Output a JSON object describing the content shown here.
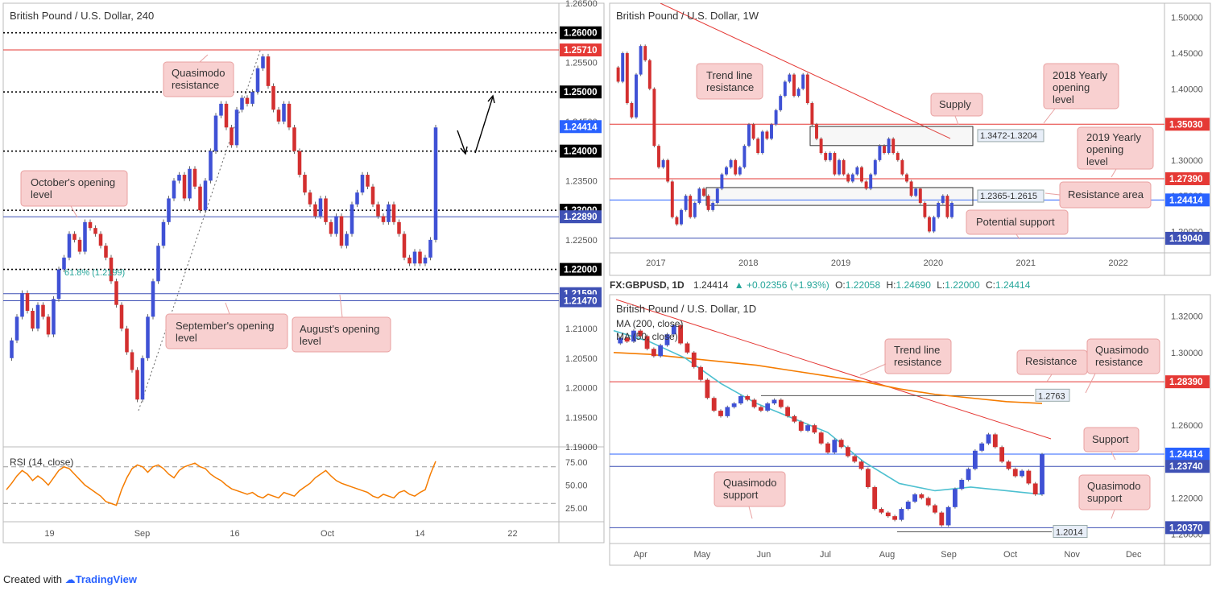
{
  "footer": {
    "created_with": "Created with",
    "brand": "TradingView"
  },
  "ohlc_bar": {
    "symbol": "FX:GBPUSD, 1D",
    "last": "1.24414",
    "change": "+0.02356 (+1.93%)",
    "o_label": "O:",
    "o": "1.22058",
    "h_label": "H:",
    "h": "1.24690",
    "l_label": "L:",
    "l": "1.22000",
    "c_label": "C:",
    "c": "1.24414"
  },
  "chart_data": [
    {
      "type": "line",
      "title": "British Pound / U.S. Dollar, 240",
      "ylim": [
        1.19,
        1.265
      ],
      "y_ticks": [
        "1.26500",
        "1.25500",
        "1.24500",
        "1.23500",
        "1.22500",
        "1.21000",
        "1.20500",
        "1.20000",
        "1.19500",
        "1.19000"
      ],
      "x_ticks": [
        "19",
        "Sep",
        "16",
        "Oct",
        "14",
        "22"
      ],
      "levels": [
        {
          "value": 1.26,
          "label": "1.26000",
          "color": "#000000",
          "style": "dotted"
        },
        {
          "value": 1.2571,
          "label": "1.25710",
          "color": "#e53935",
          "style": "solid"
        },
        {
          "value": 1.25,
          "label": "1.25000",
          "color": "#000000",
          "style": "dotted"
        },
        {
          "value": 1.24414,
          "label": "1.24414",
          "color": "#2962ff",
          "style": "none"
        },
        {
          "value": 1.24,
          "label": "1.24000",
          "color": "#000000",
          "style": "dotted"
        },
        {
          "value": 1.23,
          "label": "1.23000",
          "color": "#000000",
          "style": "dotted"
        },
        {
          "value": 1.2289,
          "label": "1.22890",
          "color": "#3f51b5",
          "style": "solid"
        },
        {
          "value": 1.22,
          "label": "1.22000",
          "color": "#000000",
          "style": "dotted"
        },
        {
          "value": 1.2159,
          "label": "1.21590",
          "color": "#3f51b5",
          "style": "solid"
        },
        {
          "value": 1.2147,
          "label": "1.21470",
          "color": "#3f51b5",
          "style": "solid"
        }
      ],
      "fib_label": "61.8% (1.2199)",
      "annotations": [
        "Quasimodo resistance",
        "October's opening level",
        "September's opening level",
        "August's opening level"
      ],
      "series": [
        {
          "values": [
            1.205,
            1.208,
            1.212,
            1.216,
            1.213,
            1.21,
            1.214,
            1.212,
            1.209,
            1.215,
            1.22,
            1.222,
            1.226,
            1.225,
            1.223,
            1.228,
            1.227,
            1.226,
            1.224,
            1.222,
            1.218,
            1.214,
            1.21,
            1.206,
            1.203,
            1.198,
            1.205,
            1.212,
            1.218,
            1.224,
            1.228,
            1.232,
            1.235,
            1.236,
            1.232,
            1.237,
            1.234,
            1.23,
            1.235,
            1.24,
            1.246,
            1.248,
            1.244,
            1.241,
            1.247,
            1.249,
            1.248,
            1.25,
            1.254,
            1.256,
            1.251,
            1.247,
            1.245,
            1.248,
            1.244,
            1.24,
            1.236,
            1.233,
            1.231,
            1.229,
            1.232,
            1.228,
            1.226,
            1.229,
            1.224,
            1.226,
            1.231,
            1.233,
            1.236,
            1.234,
            1.231,
            1.229,
            1.228,
            1.231,
            1.228,
            1.226,
            1.222,
            1.221,
            1.223,
            1.221,
            1.222,
            1.225,
            1.244
          ]
        }
      ],
      "rsi": {
        "label": "RSI (14, close)",
        "ticks": [
          "75.00",
          "50.00",
          "25.00"
        ],
        "values": [
          45,
          52,
          60,
          66,
          62,
          55,
          60,
          56,
          50,
          58,
          66,
          70,
          68,
          62,
          56,
          50,
          46,
          42,
          38,
          32,
          30,
          28,
          45,
          58,
          68,
          72,
          70,
          64,
          70,
          72,
          68,
          62,
          58,
          66,
          70,
          72,
          74,
          70,
          68,
          62,
          58,
          55,
          50,
          46,
          44,
          42,
          40,
          42,
          38,
          36,
          40,
          38,
          36,
          42,
          40,
          38,
          44,
          48,
          52,
          58,
          62,
          66,
          60,
          55,
          52,
          50,
          48,
          46,
          44,
          42,
          38,
          36,
          40,
          38,
          36,
          42,
          44,
          40,
          38,
          42,
          45,
          62,
          76
        ]
      }
    },
    {
      "type": "line",
      "title": "British Pound / U.S. Dollar, 1W",
      "ylim": [
        1.17,
        1.52
      ],
      "y_ticks": [
        "1.50000",
        "1.45000",
        "1.40000",
        "1.30000",
        "1.25000",
        "1.20000"
      ],
      "x_ticks": [
        "2017",
        "2018",
        "2019",
        "2020",
        "2021",
        "2022"
      ],
      "levels": [
        {
          "value": 1.3503,
          "label": "1.35030",
          "color": "#e53935"
        },
        {
          "value": 1.2739,
          "label": "1.27390",
          "color": "#e53935"
        },
        {
          "value": 1.24414,
          "label": "1.24414",
          "color": "#2962ff"
        },
        {
          "value": 1.1904,
          "label": "1.19040",
          "color": "#3f51b5"
        }
      ],
      "zones": [
        {
          "label": "1.3472-1.3204",
          "top": 1.3472,
          "bottom": 1.3204
        },
        {
          "label": "1.2365-1.2615",
          "top": 1.2615,
          "bottom": 1.2365
        }
      ],
      "annotations": [
        "Trend line resistance",
        "2018 Yearly opening level",
        "Supply",
        "2019 Yearly opening level",
        "Resistance area",
        "Potential support"
      ],
      "series": [
        {
          "values": [
            1.43,
            1.41,
            1.45,
            1.38,
            1.36,
            1.42,
            1.46,
            1.44,
            1.4,
            1.32,
            1.29,
            1.3,
            1.27,
            1.22,
            1.21,
            1.23,
            1.25,
            1.22,
            1.24,
            1.26,
            1.25,
            1.23,
            1.24,
            1.26,
            1.28,
            1.29,
            1.3,
            1.28,
            1.29,
            1.32,
            1.35,
            1.33,
            1.31,
            1.34,
            1.33,
            1.35,
            1.37,
            1.39,
            1.41,
            1.42,
            1.39,
            1.4,
            1.42,
            1.38,
            1.35,
            1.33,
            1.31,
            1.3,
            1.31,
            1.28,
            1.3,
            1.28,
            1.27,
            1.28,
            1.29,
            1.27,
            1.26,
            1.28,
            1.3,
            1.32,
            1.31,
            1.33,
            1.31,
            1.3,
            1.28,
            1.27,
            1.25,
            1.26,
            1.24,
            1.22,
            1.2,
            1.22,
            1.24,
            1.25,
            1.22,
            1.24
          ]
        }
      ]
    },
    {
      "type": "line",
      "title": "British Pound / U.S. Dollar, 1D",
      "ylim": [
        1.195,
        1.33
      ],
      "y_ticks": [
        "1.32000",
        "1.30000",
        "1.26000",
        "1.22000",
        "1.20000"
      ],
      "x_ticks": [
        "Apr",
        "May",
        "Jun",
        "Jul",
        "Aug",
        "Sep",
        "Oct",
        "Nov",
        "Dec"
      ],
      "legend": [
        "MA (200, close)",
        "MA (50, close)"
      ],
      "levels": [
        {
          "value": 1.2839,
          "label": "1.28390",
          "color": "#e53935"
        },
        {
          "value": 1.24414,
          "label": "1.24414",
          "color": "#2962ff"
        },
        {
          "value": 1.2374,
          "label": "1.23740",
          "color": "#3f51b5"
        },
        {
          "value": 1.2037,
          "label": "1.20370",
          "color": "#3f51b5"
        }
      ],
      "marked": [
        {
          "label": "1.2763",
          "value": 1.2763
        },
        {
          "label": "1.2014",
          "value": 1.2014
        }
      ],
      "annotations": [
        "Trend line resistance",
        "Resistance",
        "Quasimodo resistance",
        "Support",
        "Quasimodo support",
        "Quasimodo support"
      ],
      "series": [
        {
          "name": "MA (200, close)",
          "values": [
            1.3,
            1.299,
            1.297,
            1.295,
            1.293,
            1.29,
            1.287,
            1.284,
            1.28,
            1.277,
            1.275,
            1.273,
            1.272
          ]
        },
        {
          "name": "MA (50, close)",
          "values": [
            1.312,
            1.306,
            1.297,
            1.283,
            1.272,
            1.264,
            1.256,
            1.24,
            1.228,
            1.224,
            1.226,
            1.224,
            1.222
          ]
        },
        {
          "name": "GBPUSD",
          "values": [
            1.305,
            1.308,
            1.306,
            1.312,
            1.309,
            1.302,
            1.298,
            1.304,
            1.31,
            1.315,
            1.305,
            1.3,
            1.292,
            1.285,
            1.275,
            1.268,
            1.265,
            1.27,
            1.272,
            1.276,
            1.274,
            1.27,
            1.268,
            1.272,
            1.274,
            1.27,
            1.265,
            1.262,
            1.257,
            1.26,
            1.256,
            1.25,
            1.245,
            1.252,
            1.248,
            1.243,
            1.24,
            1.236,
            1.226,
            1.214,
            1.212,
            1.21,
            1.208,
            1.214,
            1.218,
            1.222,
            1.22,
            1.216,
            1.212,
            1.205,
            1.215,
            1.225,
            1.23,
            1.236,
            1.246,
            1.25,
            1.255,
            1.248,
            1.24,
            1.236,
            1.232,
            1.235,
            1.228,
            1.222,
            1.244
          ]
        }
      ]
    }
  ]
}
